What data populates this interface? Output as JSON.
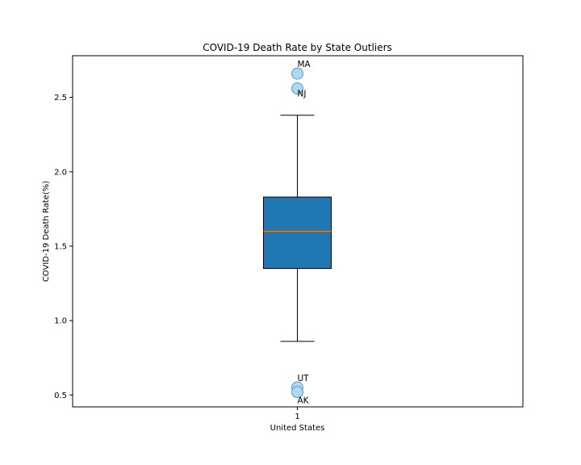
{
  "chart_data": {
    "type": "box",
    "title": "COVID-19 Death Rate by State Outliers",
    "xlabel": "United States",
    "ylabel": "COVID-19 Death Rate(%)",
    "ylim": [
      0.42,
      2.78
    ],
    "yticks": [
      0.5,
      1.0,
      1.5,
      2.0,
      2.5
    ],
    "ytick_labels": [
      "0.5",
      "1.0",
      "1.5",
      "2.0",
      "2.5"
    ],
    "categories": [
      "1"
    ],
    "box": {
      "whisker_low": 0.86,
      "q1": 1.35,
      "median": 1.6,
      "q3": 1.83,
      "whisker_high": 2.38
    },
    "outliers": [
      {
        "label": "MA",
        "value": 2.66
      },
      {
        "label": "NJ",
        "value": 2.56
      },
      {
        "label": "UT",
        "value": 0.55
      },
      {
        "label": "AK",
        "value": 0.52
      }
    ],
    "colors": {
      "box_fill": "#1f77b4",
      "median": "#ff7f0e",
      "outlier_fill": "#add8f0",
      "outlier_edge": "#5b9bc8"
    },
    "grid": false
  }
}
